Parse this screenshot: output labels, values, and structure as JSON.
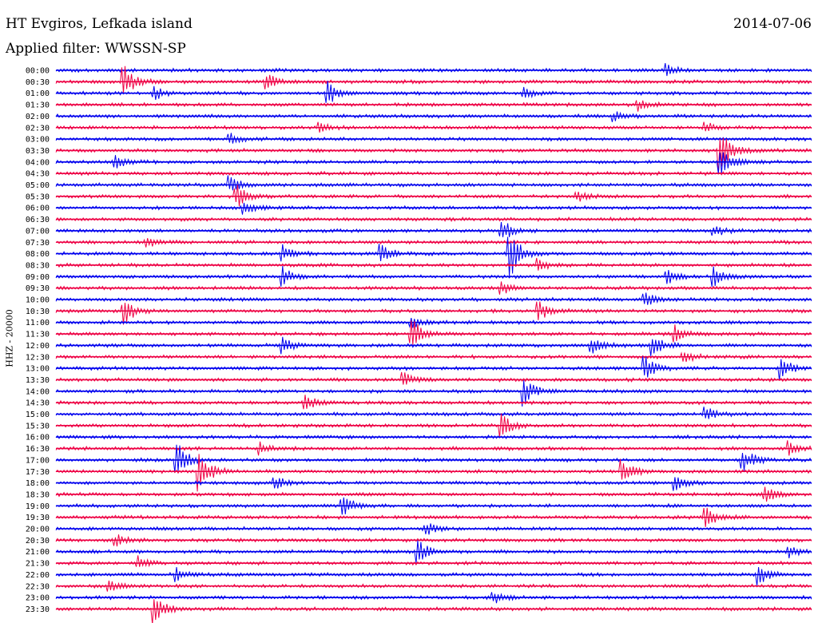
{
  "header": {
    "station": "HT Evgiros, Lefkada island",
    "date": "2014-07-06",
    "filter": "Applied filter: WWSSN-SP"
  },
  "side_label": "HHZ - 20000",
  "chart_data": {
    "type": "line",
    "title": "HT Evgiros, Lefkada island",
    "subtitle": "Applied filter: WWSSN-SP",
    "date": "2014-07-06",
    "ylabel": "HHZ - 20000",
    "xlabel": "",
    "grid": false,
    "colors": [
      "#0000ee",
      "#ee0044"
    ],
    "rows": [
      "00:00",
      "00:30",
      "01:00",
      "01:30",
      "02:00",
      "02:30",
      "03:00",
      "03:30",
      "04:00",
      "04:30",
      "05:00",
      "05:30",
      "06:00",
      "06:30",
      "07:00",
      "07:30",
      "08:00",
      "08:30",
      "09:00",
      "09:30",
      "10:00",
      "10:30",
      "11:00",
      "11:30",
      "12:00",
      "12:30",
      "13:00",
      "13:30",
      "14:00",
      "14:30",
      "15:00",
      "15:30",
      "16:00",
      "16:30",
      "17:00",
      "17:30",
      "18:00",
      "18:30",
      "19:00",
      "19:30",
      "20:00",
      "20:30",
      "21:00",
      "21:30",
      "22:00",
      "22:30",
      "23:00",
      "23:30"
    ],
    "events": [
      [
        0,
        0.81,
        1.0
      ],
      [
        1,
        0.09,
        3.0
      ],
      [
        1,
        0.28,
        1.5
      ],
      [
        2,
        0.13,
        1.2
      ],
      [
        2,
        0.36,
        2.2
      ],
      [
        2,
        0.62,
        1.0
      ],
      [
        3,
        0.77,
        1.0
      ],
      [
        4,
        0.74,
        0.8
      ],
      [
        5,
        0.35,
        0.8
      ],
      [
        5,
        0.86,
        0.9
      ],
      [
        6,
        0.23,
        1.0
      ],
      [
        7,
        0.88,
        4.0
      ],
      [
        8,
        0.08,
        1.0
      ],
      [
        8,
        0.88,
        3.0
      ],
      [
        10,
        0.23,
        1.5
      ],
      [
        11,
        0.24,
        2.0
      ],
      [
        11,
        0.69,
        1.0
      ],
      [
        12,
        0.25,
        1.0
      ],
      [
        14,
        0.59,
        2.0
      ],
      [
        14,
        0.87,
        1.0
      ],
      [
        15,
        0.12,
        0.8
      ],
      [
        16,
        0.3,
        1.5
      ],
      [
        16,
        0.43,
        2.0
      ],
      [
        16,
        0.6,
        5.0
      ],
      [
        17,
        0.64,
        1.2
      ],
      [
        18,
        0.3,
        1.6
      ],
      [
        18,
        0.81,
        1.3
      ],
      [
        18,
        0.87,
        1.8
      ],
      [
        19,
        0.59,
        1.0
      ],
      [
        20,
        0.78,
        1.5
      ],
      [
        21,
        0.09,
        2.5
      ],
      [
        21,
        0.64,
        1.6
      ],
      [
        22,
        0.47,
        1.0
      ],
      [
        23,
        0.47,
        3.0
      ],
      [
        23,
        0.82,
        1.5
      ],
      [
        24,
        0.3,
        1.3
      ],
      [
        24,
        0.71,
        1.4
      ],
      [
        24,
        0.79,
        2.0
      ],
      [
        25,
        0.83,
        1.2
      ],
      [
        26,
        0.78,
        2.2
      ],
      [
        26,
        0.96,
        2.0
      ],
      [
        27,
        0.46,
        1.2
      ],
      [
        28,
        0.62,
        2.5
      ],
      [
        29,
        0.33,
        1.5
      ],
      [
        30,
        0.86,
        1.2
      ],
      [
        31,
        0.59,
        2.0
      ],
      [
        33,
        0.27,
        1.2
      ],
      [
        33,
        0.97,
        1.5
      ],
      [
        34,
        0.16,
        3.5
      ],
      [
        34,
        0.91,
        2.5
      ],
      [
        35,
        0.19,
        4.0
      ],
      [
        35,
        0.75,
        2.0
      ],
      [
        36,
        0.29,
        1.2
      ],
      [
        36,
        0.82,
        1.5
      ],
      [
        37,
        0.94,
        1.2
      ],
      [
        38,
        0.38,
        2.0
      ],
      [
        39,
        0.86,
        2.0
      ],
      [
        40,
        0.49,
        1.2
      ],
      [
        41,
        0.08,
        1.0
      ],
      [
        42,
        0.48,
        2.0
      ],
      [
        42,
        0.97,
        1.0
      ],
      [
        43,
        0.11,
        1.2
      ],
      [
        44,
        0.16,
        1.2
      ],
      [
        44,
        0.93,
        2.0
      ],
      [
        45,
        0.07,
        1.2
      ],
      [
        46,
        0.58,
        1.0
      ],
      [
        47,
        0.13,
        2.5
      ]
    ]
  }
}
